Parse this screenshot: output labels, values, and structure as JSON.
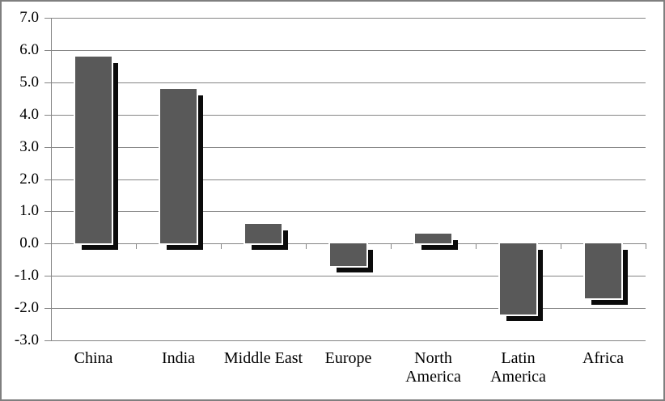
{
  "chart_data": {
    "type": "bar",
    "title": "",
    "xlabel": "",
    "ylabel": "",
    "categories": [
      "China",
      "India",
      "Middle East",
      "Europe",
      "North America",
      "Latin America",
      "Africa"
    ],
    "values": [
      5.8,
      4.8,
      0.6,
      -0.7,
      0.3,
      -2.2,
      -1.7
    ],
    "ylim": [
      -3.0,
      7.0
    ],
    "ytick_step": 1.0,
    "ytick_labels": [
      "7.0",
      "6.0",
      "5.0",
      "4.0",
      "3.0",
      "2.0",
      "1.0",
      "0.0",
      "-1.0",
      "-2.0",
      "-3.0"
    ],
    "grid": true,
    "legend": false,
    "bar_color": "#595959",
    "shadow_color": "#0b0b0b",
    "gridline_color": "#848484",
    "axis_color": "#848484",
    "border_color": "#7f7f7f",
    "background_color": "#ffffff",
    "text_color": "#000000"
  }
}
